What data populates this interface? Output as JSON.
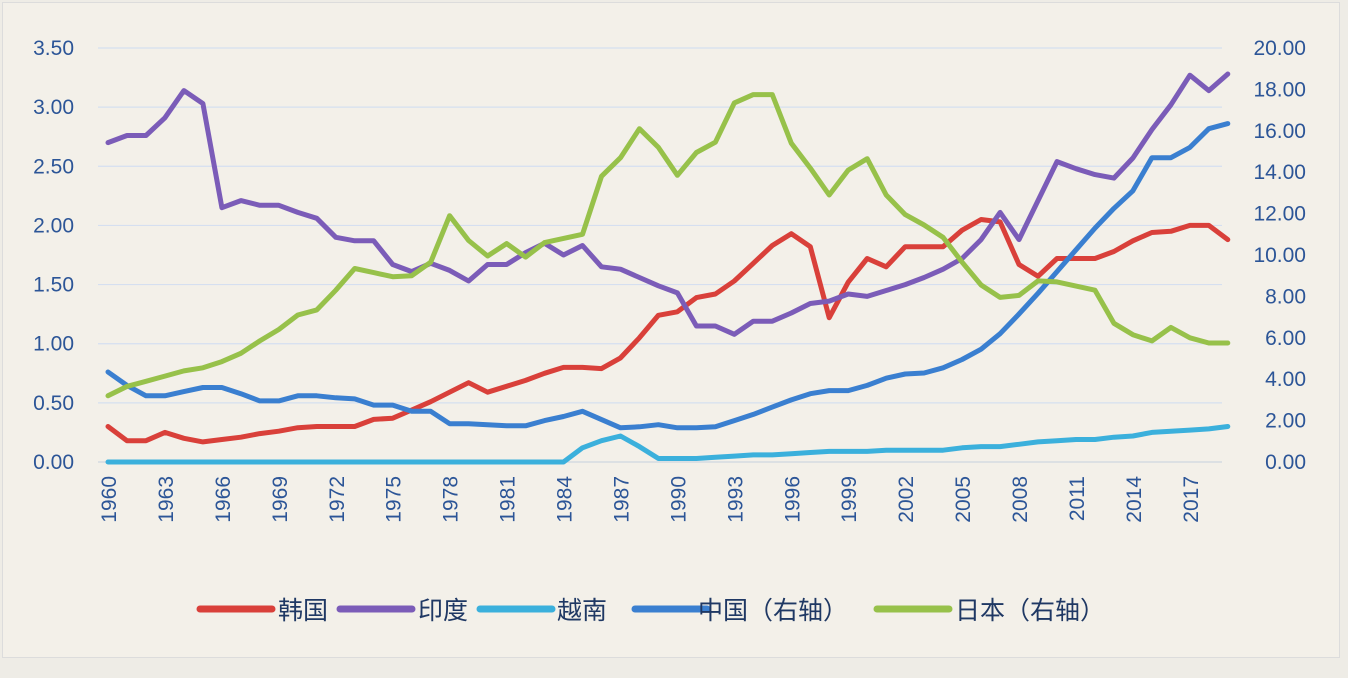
{
  "chart_data": {
    "type": "line",
    "title": "",
    "xlabel": "",
    "ylabel": "",
    "x": [
      1960,
      1961,
      1962,
      1963,
      1964,
      1965,
      1966,
      1967,
      1968,
      1969,
      1970,
      1971,
      1972,
      1973,
      1974,
      1975,
      1976,
      1977,
      1978,
      1979,
      1980,
      1981,
      1982,
      1983,
      1984,
      1985,
      1986,
      1987,
      1988,
      1989,
      1990,
      1991,
      1992,
      1993,
      1994,
      1995,
      1996,
      1997,
      1998,
      1999,
      2000,
      2001,
      2002,
      2003,
      2004,
      2005,
      2006,
      2007,
      2008,
      2009,
      2010,
      2011,
      2012,
      2013,
      2014,
      2015,
      2016,
      2017,
      2018,
      2019
    ],
    "x_tick_labels": [
      "1960",
      "1963",
      "1966",
      "1969",
      "1972",
      "1975",
      "1978",
      "1981",
      "1984",
      "1987",
      "1990",
      "1993",
      "1996",
      "1999",
      "2002",
      "2005",
      "2008",
      "2011",
      "2014",
      "2017"
    ],
    "y_left": {
      "range": [
        0,
        3.5
      ],
      "tick_labels": [
        "0.00",
        "0.50",
        "1.00",
        "1.50",
        "2.00",
        "2.50",
        "3.00",
        "3.50"
      ]
    },
    "y_right": {
      "range": [
        0,
        20
      ],
      "tick_labels": [
        "0.00",
        "2.00",
        "4.00",
        "6.00",
        "8.00",
        "10.00",
        "12.00",
        "14.00",
        "16.00",
        "18.00",
        "20.00"
      ]
    },
    "grid": true,
    "legend_position": "bottom",
    "series": [
      {
        "name": "韩国",
        "axis": "left",
        "color": "#d9403a",
        "values": [
          0.3,
          0.18,
          0.18,
          0.25,
          0.2,
          0.17,
          0.19,
          0.21,
          0.24,
          0.26,
          0.29,
          0.3,
          0.3,
          0.3,
          0.36,
          0.37,
          0.44,
          0.51,
          0.59,
          0.67,
          0.59,
          0.64,
          0.69,
          0.75,
          0.8,
          0.8,
          0.79,
          0.88,
          1.05,
          1.24,
          1.27,
          1.39,
          1.42,
          1.53,
          1.68,
          1.83,
          1.93,
          1.82,
          1.22,
          1.52,
          1.72,
          1.65,
          1.82,
          1.82,
          1.82,
          1.96,
          2.05,
          2.03,
          1.67,
          1.57,
          1.72,
          1.72,
          1.72,
          1.78,
          1.87,
          1.94,
          1.95,
          2.0,
          2.0,
          1.88
        ]
      },
      {
        "name": "印度",
        "axis": "left",
        "color": "#7b5cb8",
        "values": [
          2.7,
          2.76,
          2.76,
          2.91,
          3.14,
          3.03,
          2.15,
          2.21,
          2.17,
          2.17,
          2.11,
          2.06,
          1.9,
          1.87,
          1.87,
          1.67,
          1.61,
          1.68,
          1.62,
          1.53,
          1.67,
          1.67,
          1.77,
          1.85,
          1.75,
          1.83,
          1.65,
          1.63,
          1.56,
          1.49,
          1.43,
          1.15,
          1.15,
          1.08,
          1.19,
          1.19,
          1.26,
          1.34,
          1.36,
          1.42,
          1.4,
          1.45,
          1.5,
          1.56,
          1.63,
          1.72,
          1.88,
          2.11,
          1.88,
          2.21,
          2.54,
          2.48,
          2.43,
          2.4,
          2.57,
          2.81,
          3.02,
          3.27,
          3.14,
          3.28
        ]
      },
      {
        "name": "越南",
        "axis": "left",
        "color": "#3bb0dc",
        "values": [
          0,
          0,
          0,
          0,
          0,
          0,
          0,
          0,
          0,
          0,
          0,
          0,
          0,
          0,
          0,
          0,
          0,
          0,
          0,
          0,
          0,
          0,
          0,
          0,
          0,
          0.12,
          0.18,
          0.22,
          0.13,
          0.03,
          0.03,
          0.03,
          0.04,
          0.05,
          0.06,
          0.06,
          0.07,
          0.08,
          0.09,
          0.09,
          0.09,
          0.1,
          0.1,
          0.1,
          0.1,
          0.12,
          0.13,
          0.13,
          0.15,
          0.17,
          0.18,
          0.19,
          0.19,
          0.21,
          0.22,
          0.25,
          0.26,
          0.27,
          0.28,
          0.3
        ]
      },
      {
        "name": "中国（右轴）",
        "axis": "right",
        "color": "#3a7fd0",
        "values": [
          4.35,
          3.7,
          3.2,
          3.2,
          3.4,
          3.6,
          3.6,
          3.3,
          2.95,
          2.95,
          3.2,
          3.2,
          3.1,
          3.05,
          2.75,
          2.75,
          2.45,
          2.45,
          1.85,
          1.85,
          1.8,
          1.75,
          1.75,
          2.0,
          2.2,
          2.45,
          2.05,
          1.65,
          1.7,
          1.8,
          1.65,
          1.65,
          1.7,
          2.0,
          2.3,
          2.65,
          3.0,
          3.3,
          3.45,
          3.45,
          3.7,
          4.05,
          4.25,
          4.3,
          4.55,
          4.95,
          5.45,
          6.2,
          7.15,
          8.15,
          9.2,
          10.25,
          11.3,
          12.25,
          13.1,
          14.7,
          14.7,
          15.2,
          16.1,
          16.35
        ]
      },
      {
        "name": "日本（右轴）",
        "axis": "right",
        "color": "#97c14a",
        "values": [
          3.2,
          3.65,
          3.9,
          4.15,
          4.4,
          4.55,
          4.85,
          5.25,
          5.85,
          6.4,
          7.1,
          7.35,
          8.3,
          9.35,
          9.15,
          8.95,
          9.0,
          9.65,
          11.9,
          10.7,
          9.95,
          10.55,
          9.9,
          10.6,
          10.8,
          11.0,
          13.8,
          14.7,
          16.1,
          15.2,
          13.85,
          14.95,
          15.45,
          17.35,
          17.75,
          17.75,
          15.4,
          14.2,
          12.9,
          14.1,
          14.65,
          12.9,
          11.95,
          11.45,
          10.85,
          9.65,
          8.55,
          7.95,
          8.05,
          8.75,
          8.7,
          8.5,
          8.3,
          6.7,
          6.15,
          5.85,
          6.5,
          6.0,
          5.75,
          5.75
        ]
      }
    ]
  }
}
